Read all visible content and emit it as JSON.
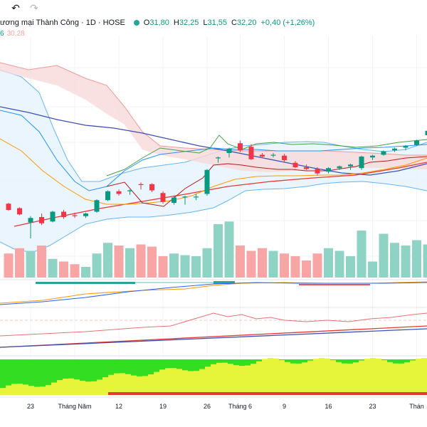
{
  "toolbar": {
    "undo_icon": "undo-icon",
    "redo_icon": "redo-icon"
  },
  "legend": {
    "title": "ương mại Thành Công · 1D · HOSE",
    "status_color": "#26a69a",
    "open_label": "O",
    "open": "31,80",
    "high_label": "H",
    "high": "32,25",
    "low_label": "L",
    "low": "31,55",
    "close_label": "C",
    "close": "32,20",
    "change": "+0,40 (+1,26%)",
    "sub_values": [
      {
        "text": "6",
        "color": "#089981"
      },
      {
        "text": "30,28",
        "color": "#f7a5a5"
      }
    ]
  },
  "chart_data": {
    "type": "candlestick",
    "x_ticks": [
      {
        "label": "23",
        "i": 2
      },
      {
        "label": "Tháng Năm",
        "i": 6
      },
      {
        "label": "12",
        "i": 10
      },
      {
        "label": "19",
        "i": 14
      },
      {
        "label": "26",
        "i": 18
      },
      {
        "label": "Tháng 6",
        "i": 21
      },
      {
        "label": "9",
        "i": 25
      },
      {
        "label": "16",
        "i": 29
      },
      {
        "label": "23",
        "i": 33
      },
      {
        "label": "Thán",
        "i": 37
      }
    ],
    "price_range": [
      26.4,
      40.0
    ],
    "candles": [
      [
        30.55,
        30.6,
        30.15,
        30.2
      ],
      [
        30.3,
        30.35,
        29.9,
        29.95
      ],
      [
        29.5,
        29.85,
        28.6,
        29.75
      ],
      [
        29.8,
        30.0,
        29.35,
        29.45
      ],
      [
        29.55,
        30.15,
        29.5,
        30.1
      ],
      [
        30.1,
        30.2,
        29.7,
        29.8
      ],
      [
        29.9,
        30.05,
        29.75,
        29.85
      ],
      [
        29.85,
        30.05,
        29.75,
        30.0
      ],
      [
        30.1,
        30.8,
        30.05,
        30.75
      ],
      [
        30.75,
        31.3,
        30.7,
        31.25
      ],
      [
        31.25,
        31.35,
        31.0,
        31.1
      ],
      [
        31.25,
        31.35,
        31.05,
        31.3
      ],
      [
        31.65,
        31.75,
        31.35,
        31.6
      ],
      [
        31.65,
        31.7,
        31.2,
        31.3
      ],
      [
        31.15,
        31.25,
        30.55,
        30.65
      ],
      [
        30.6,
        30.95,
        30.5,
        30.9
      ],
      [
        30.9,
        31.0,
        30.5,
        30.95
      ],
      [
        30.95,
        31.1,
        30.75,
        30.95
      ],
      [
        31.1,
        32.5,
        31.0,
        32.45
      ],
      [
        33.1,
        33.2,
        32.85,
        33.15
      ],
      [
        33.4,
        33.7,
        33.15,
        33.65
      ],
      [
        33.95,
        34.1,
        33.45,
        33.55
      ],
      [
        33.75,
        33.9,
        33.0,
        33.05
      ],
      [
        33.3,
        33.4,
        33.1,
        33.2
      ],
      [
        33.3,
        33.4,
        33.15,
        33.3
      ],
      [
        33.25,
        33.35,
        32.85,
        33.0
      ],
      [
        32.85,
        32.95,
        32.55,
        32.6
      ],
      [
        32.6,
        32.75,
        32.45,
        32.5
      ],
      [
        32.5,
        32.6,
        32.15,
        32.25
      ],
      [
        32.35,
        32.6,
        32.25,
        32.55
      ],
      [
        32.55,
        32.7,
        32.45,
        32.65
      ],
      [
        32.65,
        32.8,
        32.45,
        32.75
      ],
      [
        32.55,
        33.25,
        32.45,
        33.2
      ],
      [
        33.15,
        33.3,
        33.0,
        33.25
      ],
      [
        33.3,
        33.55,
        33.25,
        33.5
      ],
      [
        33.55,
        33.7,
        33.45,
        33.65
      ],
      [
        33.7,
        33.85,
        33.55,
        33.8
      ],
      [
        33.85,
        34.15,
        33.8,
        34.1
      ],
      [
        34.4,
        34.75,
        34.35,
        34.65
      ]
    ],
    "volume": [
      0.45,
      0.55,
      0.5,
      0.6,
      0.35,
      0.3,
      0.25,
      0.2,
      0.45,
      0.65,
      0.6,
      0.55,
      0.62,
      0.58,
      0.4,
      0.45,
      0.42,
      0.4,
      0.55,
      1.0,
      1.05,
      0.6,
      0.5,
      0.55,
      0.5,
      0.45,
      0.4,
      0.32,
      0.45,
      0.55,
      0.5,
      0.4,
      0.88,
      0.3,
      0.82,
      0.65,
      0.6,
      0.7,
      0.62
    ],
    "colors": {
      "up": "#089981",
      "down": "#f23645",
      "vol_up": "#8fd3c4",
      "vol_down": "#f7a5a5",
      "cloud": "#f8d9d9",
      "band": "#e3f2fd"
    }
  }
}
